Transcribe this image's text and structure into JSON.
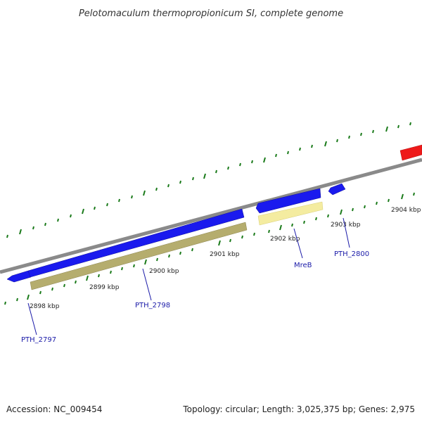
{
  "header": {
    "title": "Pelotomaculum thermopropionicum SI, complete genome"
  },
  "footer": {
    "accession": "Accession: NC_009454",
    "summary": "Topology: circular; Length: 3,025,375 bp; Genes: 2,975"
  },
  "scale": {
    "ticks": [
      {
        "label": "2898 kbp"
      },
      {
        "label": "2899 kbp"
      },
      {
        "label": "2900 kbp"
      },
      {
        "label": "2901 kbp"
      },
      {
        "label": "2902 kbp"
      },
      {
        "label": "2903 kbp"
      },
      {
        "label": "2904 kbp"
      }
    ]
  },
  "genes": [
    {
      "label": "PTH_2797",
      "strand": "forward",
      "color": "#1a1aee"
    },
    {
      "label": "PTH_2798",
      "strand": "forward",
      "color": "#1a1aee"
    },
    {
      "label": "MreB",
      "strand": "forward",
      "color": "#1a1aee"
    },
    {
      "label": "PTH_2800",
      "strand": "forward",
      "color": "#1a1aee"
    }
  ],
  "colors": {
    "backbone": "#8a8a8a",
    "tick": "#1a7a1a",
    "leader_line": "#1a1aa8",
    "cds_forward": "#1a1aee",
    "gene_track_dark": "#b5ad6e",
    "gene_track_light": "#f4eca0",
    "gene_reverse": "#ee1a1a"
  }
}
